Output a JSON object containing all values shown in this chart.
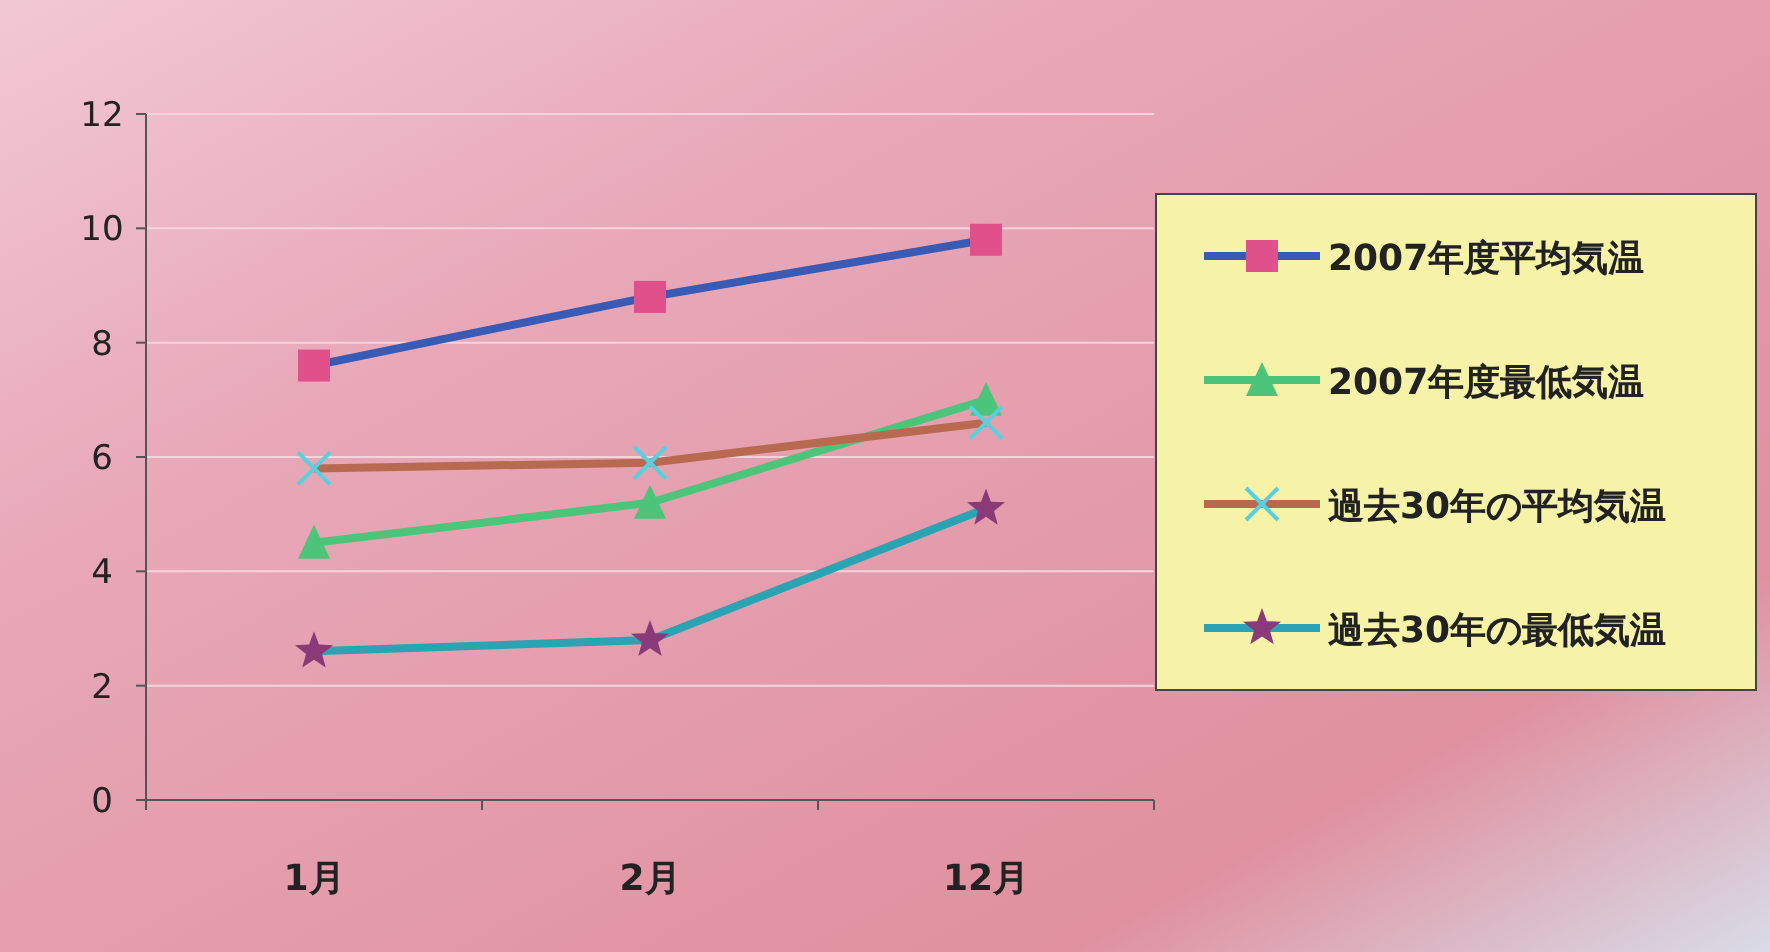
{
  "chart_data": {
    "type": "line",
    "categories": [
      "1月",
      "2月",
      "12月"
    ],
    "ylim": [
      0,
      12
    ],
    "yticks": [
      0,
      2,
      4,
      6,
      8,
      10,
      12
    ],
    "grid": "y",
    "legend": "right",
    "series": [
      {
        "name": "2007年度平均気温",
        "color": "#3a5bb5",
        "colors": [
          "#e0508a",
          "#e0508a",
          "#e0508a"
        ],
        "marker": "square",
        "values": [
          7.6,
          8.8,
          9.8
        ]
      },
      {
        "name": "2007年度最低気温",
        "color": "#4cc47a",
        "colors": [
          "#4cc47a",
          "#4cc47a",
          "#4cc47a"
        ],
        "marker": "triangle",
        "values": [
          4.5,
          5.2,
          7.0
        ]
      },
      {
        "name": "過去30年の平均気温",
        "color": "#b86a50",
        "colors": [
          "#58d0e0",
          "#58d0e0",
          "#58d0e0"
        ],
        "marker": "cross",
        "values": [
          5.8,
          5.9,
          6.6
        ]
      },
      {
        "name": "過去30年の最低気温",
        "color": "#2aa3b3",
        "colors": [
          "#8a3a78",
          "#8a3a78",
          "#8a3a78"
        ],
        "marker": "star",
        "values": [
          2.6,
          2.8,
          5.1
        ]
      }
    ]
  }
}
